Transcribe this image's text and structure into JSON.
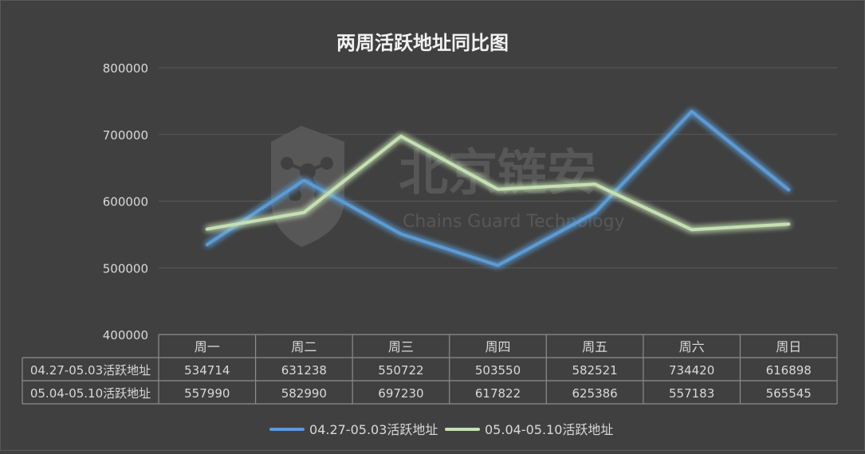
{
  "chart_data": {
    "type": "line",
    "title": "两周活跃地址同比图",
    "categories": [
      "周一",
      "周二",
      "周三",
      "周四",
      "周五",
      "周六",
      "周日"
    ],
    "ylim": [
      400000,
      800000
    ],
    "yticks": [
      "400000",
      "500000",
      "600000",
      "700000",
      "800000"
    ],
    "grid": true,
    "legend_position": "bottom",
    "series": [
      {
        "name": "04.27-05.03活跃地址",
        "color": "#5b9bd5",
        "values": [
          534714,
          631238,
          550722,
          503550,
          582521,
          734420,
          616898
        ]
      },
      {
        "name": "05.04-05.10活跃地址",
        "color": "#c5e0b3",
        "values": [
          557990,
          582990,
          697230,
          617822,
          625386,
          557183,
          565545
        ]
      }
    ],
    "data_table": true
  },
  "watermark": {
    "text_cn": "北京链安",
    "text_en": "Chains Guard Technology"
  },
  "colors": {
    "background": "#404040",
    "grid": "#595959",
    "text": "#d9d9d9",
    "title": "#f2f2f2",
    "table_border": "#8c8c8c"
  }
}
